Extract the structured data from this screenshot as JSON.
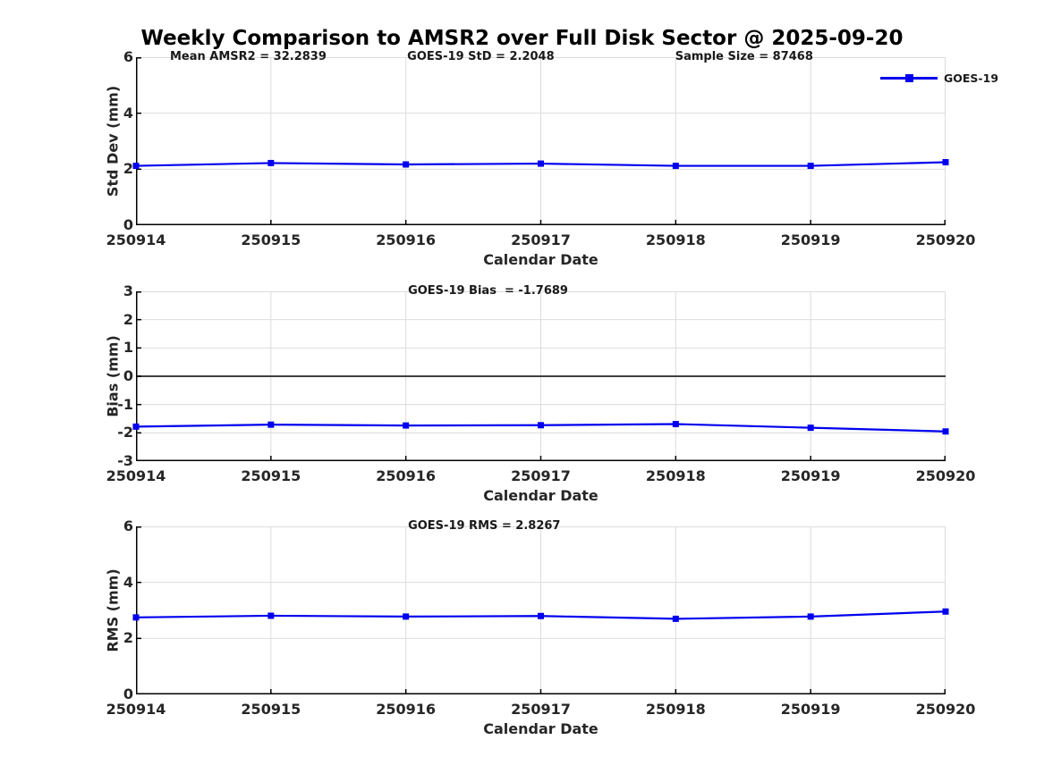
{
  "figure": {
    "title": "Weekly Comparison to AMSR2 over Full Disk Sector @ 2025-09-20"
  },
  "colors": {
    "series_line": "#0000EE",
    "grid": "#DCDCDC",
    "axis": "#000000",
    "zero_line": "#3F3F3F",
    "tick_text": "#262626",
    "annotation_text": "#1a1a1a"
  },
  "legend": {
    "position": "northeast",
    "entries": [
      {
        "label": "GOES-19",
        "color": "#0000EE",
        "marker": "filled-square"
      }
    ]
  },
  "chart_data": [
    {
      "type": "line",
      "panel": "std-dev",
      "ylabel": "Std Dev (mm)",
      "xlabel": "Calendar Date",
      "categories": [
        "250914",
        "250915",
        "250916",
        "250917",
        "250918",
        "250919",
        "250920"
      ],
      "series": [
        {
          "name": "GOES-19",
          "values": [
            2.12,
            2.22,
            2.17,
            2.2,
            2.12,
            2.12,
            2.25
          ]
        }
      ],
      "ylim": [
        0,
        6
      ],
      "yticks": [
        0,
        2,
        4,
        6
      ],
      "grid": true,
      "zero_line": false,
      "annotations": [
        "Mean AMSR2 = 32.2839",
        "GOES-19 StD = 2.2048",
        "Sample Size = 87468"
      ]
    },
    {
      "type": "line",
      "panel": "bias",
      "ylabel": "Bias (mm)",
      "xlabel": "Calendar Date",
      "categories": [
        "250914",
        "250915",
        "250916",
        "250917",
        "250918",
        "250919",
        "250920"
      ],
      "series": [
        {
          "name": "GOES-19",
          "values": [
            -1.78,
            -1.71,
            -1.74,
            -1.73,
            -1.69,
            -1.82,
            -1.95
          ]
        }
      ],
      "ylim": [
        -3,
        3
      ],
      "yticks": [
        -3,
        -2,
        -1,
        0,
        1,
        2,
        3
      ],
      "grid": true,
      "zero_line": true,
      "annotations": [
        "GOES-19 Bias  = -1.7689"
      ]
    },
    {
      "type": "line",
      "panel": "rms",
      "ylabel": "RMS (mm)",
      "xlabel": "Calendar Date",
      "categories": [
        "250914",
        "250915",
        "250916",
        "250917",
        "250918",
        "250919",
        "250920"
      ],
      "series": [
        {
          "name": "GOES-19",
          "values": [
            2.75,
            2.81,
            2.78,
            2.8,
            2.7,
            2.78,
            2.96
          ]
        }
      ],
      "ylim": [
        0,
        6
      ],
      "yticks": [
        0,
        2,
        4,
        6
      ],
      "grid": true,
      "zero_line": false,
      "annotations": [
        "GOES-19 RMS = 2.8267"
      ]
    }
  ]
}
